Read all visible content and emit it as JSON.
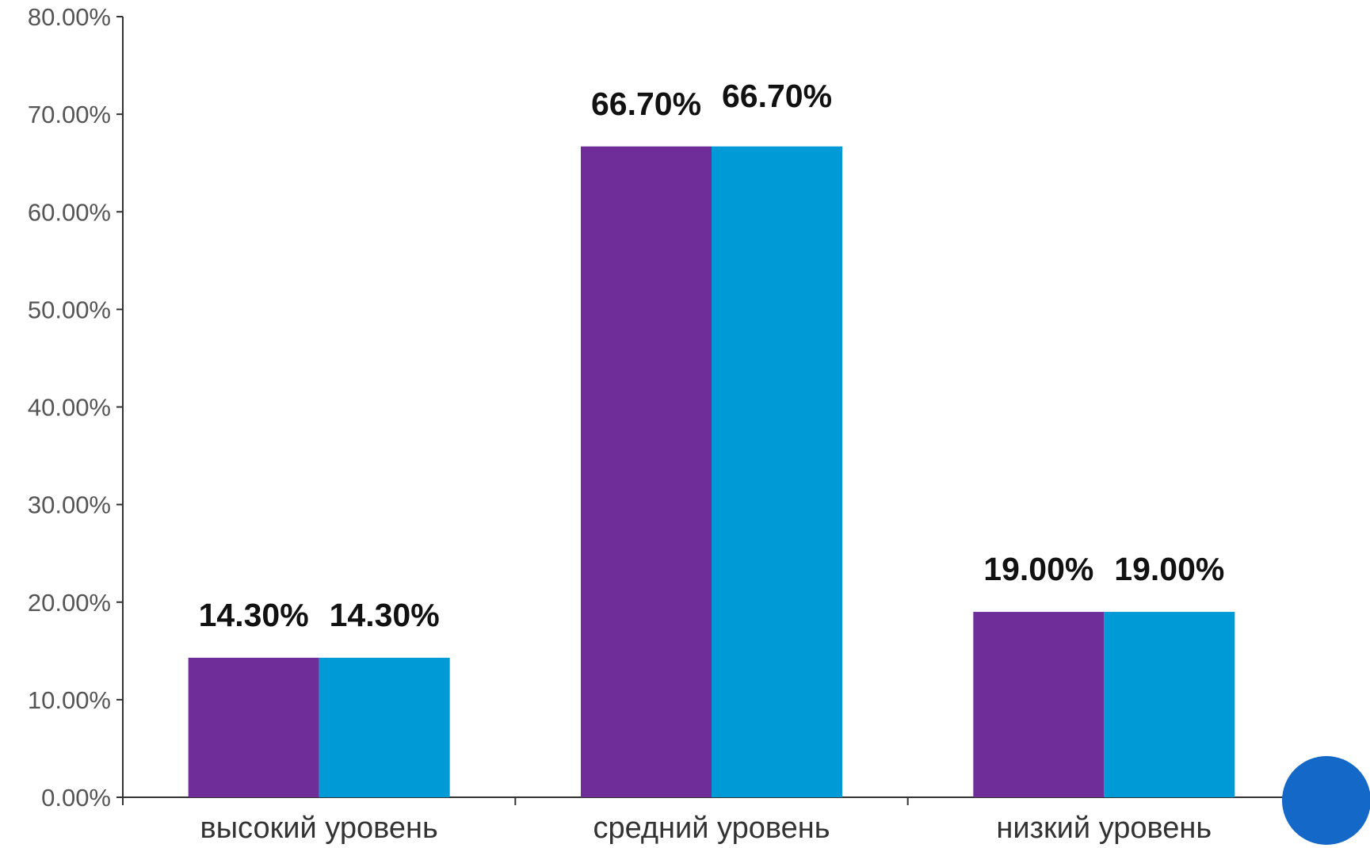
{
  "chart_data": {
    "type": "bar",
    "categories": [
      "высокий уровень",
      "средний уровень",
      "низкий уровень"
    ],
    "series": [
      {
        "values": [
          14.3,
          66.7,
          19.0
        ],
        "color": "#6f2d9a",
        "labels": [
          "14.30%",
          "66.70%",
          "19.00%"
        ]
      },
      {
        "values": [
          14.3,
          66.7,
          19.0
        ],
        "color": "#009ad6",
        "labels": [
          "14.30%",
          "66.70%",
          "19.00%"
        ]
      }
    ],
    "ylim": [
      0,
      80
    ],
    "yticks": [
      {
        "value": 0,
        "label": "0.00%"
      },
      {
        "value": 10,
        "label": "10.00%"
      },
      {
        "value": 20,
        "label": "20.00%"
      },
      {
        "value": 30,
        "label": "30.00%"
      },
      {
        "value": 40,
        "label": "40.00%"
      },
      {
        "value": 50,
        "label": "50.00%"
      },
      {
        "value": 60,
        "label": "60.00%"
      },
      {
        "value": 70,
        "label": "70.00%"
      },
      {
        "value": 80,
        "label": "80.00%"
      }
    ],
    "grid": false,
    "legend": "none"
  },
  "overlay": {
    "button_icon": "circle",
    "button_color": "#1468c8"
  }
}
